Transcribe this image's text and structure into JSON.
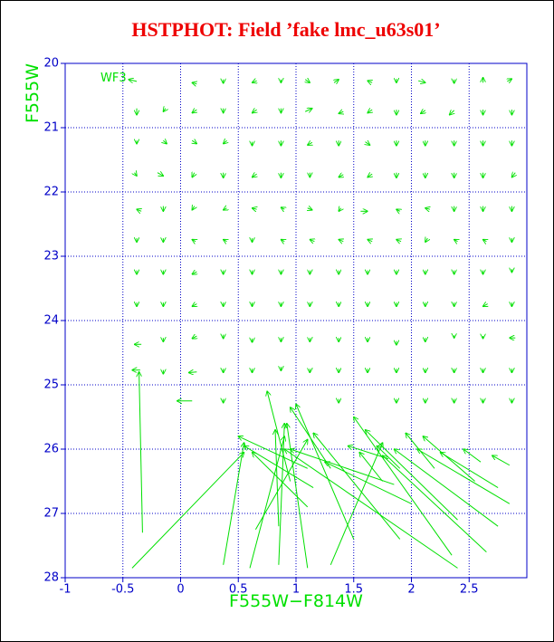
{
  "chart_data": {
    "type": "quiver",
    "title": "HSTPHOT: Field ’fake lmc_u63s01’",
    "x_label": "F555W−F814W",
    "y_label": "F555W",
    "annotation": "WF3",
    "xlim": [
      -1,
      3
    ],
    "ylim": [
      28,
      20
    ],
    "xticks": [
      -1,
      -0.5,
      0,
      0.5,
      1,
      1.5,
      2,
      2.5
    ],
    "yticks": [
      20,
      21,
      22,
      23,
      24,
      25,
      26,
      27,
      28
    ],
    "grid": true,
    "color": "#00e000",
    "arrows": [
      [
        -0.38,
        20.28,
        -0.45,
        20.25
      ],
      [
        0.14,
        20.32,
        0.1,
        20.3
      ],
      [
        0.37,
        20.25,
        0.37,
        20.31
      ],
      [
        0.66,
        20.27,
        0.62,
        20.3
      ],
      [
        0.87,
        20.25,
        0.87,
        20.3
      ],
      [
        1.08,
        20.25,
        1.12,
        20.3
      ],
      [
        1.33,
        20.3,
        1.37,
        20.25
      ],
      [
        1.66,
        20.3,
        1.62,
        20.27
      ],
      [
        1.87,
        20.24,
        1.87,
        20.3
      ],
      [
        2.06,
        20.27,
        2.12,
        20.3
      ],
      [
        2.37,
        20.25,
        2.37,
        20.31
      ],
      [
        2.62,
        20.3,
        2.62,
        20.22
      ],
      [
        2.83,
        20.28,
        2.87,
        20.24
      ],
      [
        -0.38,
        20.7,
        -0.38,
        20.8
      ],
      [
        -0.13,
        20.7,
        -0.15,
        20.75
      ],
      [
        0.14,
        20.72,
        0.1,
        20.77
      ],
      [
        0.37,
        20.7,
        0.37,
        20.77
      ],
      [
        0.66,
        20.72,
        0.62,
        20.77
      ],
      [
        0.87,
        20.7,
        0.87,
        20.77
      ],
      [
        1.08,
        20.75,
        1.14,
        20.7
      ],
      [
        1.41,
        20.75,
        1.37,
        20.78
      ],
      [
        1.66,
        20.72,
        1.62,
        20.77
      ],
      [
        1.87,
        20.72,
        1.87,
        20.8
      ],
      [
        2.12,
        20.73,
        2.08,
        20.78
      ],
      [
        2.37,
        20.73,
        2.33,
        20.8
      ],
      [
        2.62,
        20.72,
        2.62,
        20.8
      ],
      [
        2.87,
        20.72,
        2.87,
        20.8
      ],
      [
        -0.38,
        21.2,
        -0.38,
        21.25
      ],
      [
        -0.15,
        21.2,
        -0.12,
        21.25
      ],
      [
        0.1,
        21.2,
        0.14,
        21.25
      ],
      [
        0.4,
        21.2,
        0.37,
        21.25
      ],
      [
        0.62,
        21.22,
        0.62,
        21.28
      ],
      [
        0.87,
        21.2,
        0.87,
        21.28
      ],
      [
        1.14,
        21.23,
        1.1,
        21.27
      ],
      [
        1.37,
        21.2,
        1.37,
        21.28
      ],
      [
        1.6,
        21.22,
        1.64,
        21.27
      ],
      [
        1.87,
        21.2,
        1.87,
        21.28
      ],
      [
        2.12,
        21.2,
        2.12,
        21.28
      ],
      [
        2.37,
        21.2,
        2.37,
        21.28
      ],
      [
        2.62,
        21.2,
        2.62,
        21.28
      ],
      [
        2.87,
        21.2,
        2.87,
        21.28
      ],
      [
        -0.4,
        21.7,
        -0.38,
        21.75
      ],
      [
        -0.2,
        21.7,
        -0.15,
        21.75
      ],
      [
        0.12,
        21.7,
        0.1,
        21.77
      ],
      [
        0.37,
        21.7,
        0.37,
        21.78
      ],
      [
        0.66,
        21.72,
        0.62,
        21.77
      ],
      [
        0.87,
        21.7,
        0.87,
        21.78
      ],
      [
        1.12,
        21.7,
        1.12,
        21.77
      ],
      [
        1.41,
        21.73,
        1.37,
        21.77
      ],
      [
        1.66,
        21.72,
        1.62,
        21.77
      ],
      [
        1.87,
        21.7,
        1.87,
        21.78
      ],
      [
        2.12,
        21.7,
        2.12,
        21.78
      ],
      [
        2.37,
        21.7,
        2.37,
        21.78
      ],
      [
        2.62,
        21.7,
        2.62,
        21.78
      ],
      [
        2.9,
        21.7,
        2.87,
        21.77
      ],
      [
        -0.34,
        22.3,
        -0.38,
        22.27
      ],
      [
        -0.15,
        22.22,
        -0.15,
        22.3
      ],
      [
        0.12,
        22.22,
        0.1,
        22.28
      ],
      [
        0.4,
        22.25,
        0.37,
        22.28
      ],
      [
        0.66,
        22.27,
        0.62,
        22.25
      ],
      [
        0.9,
        22.27,
        0.87,
        22.24
      ],
      [
        1.1,
        22.25,
        1.14,
        22.28
      ],
      [
        1.39,
        22.25,
        1.37,
        22.3
      ],
      [
        1.56,
        22.3,
        1.62,
        22.3
      ],
      [
        1.9,
        22.3,
        1.87,
        22.27
      ],
      [
        2.16,
        22.27,
        2.12,
        22.25
      ],
      [
        2.37,
        22.22,
        2.37,
        22.3
      ],
      [
        2.62,
        22.22,
        2.62,
        22.3
      ],
      [
        2.87,
        22.22,
        2.87,
        22.3
      ],
      [
        -0.38,
        22.72,
        -0.38,
        22.78
      ],
      [
        -0.15,
        22.72,
        -0.15,
        22.78
      ],
      [
        0.13,
        22.77,
        0.1,
        22.74
      ],
      [
        0.4,
        22.77,
        0.37,
        22.74
      ],
      [
        0.62,
        22.72,
        0.62,
        22.78
      ],
      [
        0.9,
        22.77,
        0.87,
        22.74
      ],
      [
        1.16,
        22.77,
        1.12,
        22.74
      ],
      [
        1.41,
        22.77,
        1.37,
        22.74
      ],
      [
        1.66,
        22.77,
        1.62,
        22.74
      ],
      [
        1.91,
        22.77,
        1.87,
        22.74
      ],
      [
        2.14,
        22.72,
        2.12,
        22.78
      ],
      [
        2.4,
        22.77,
        2.37,
        22.74
      ],
      [
        2.65,
        22.77,
        2.62,
        22.74
      ],
      [
        2.87,
        22.72,
        2.87,
        22.78
      ],
      [
        -0.38,
        23.22,
        -0.38,
        23.28
      ],
      [
        -0.15,
        23.22,
        -0.15,
        23.28
      ],
      [
        0.14,
        23.24,
        0.1,
        23.28
      ],
      [
        0.37,
        23.22,
        0.37,
        23.28
      ],
      [
        0.62,
        23.22,
        0.62,
        23.28
      ],
      [
        0.87,
        23.22,
        0.87,
        23.28
      ],
      [
        1.12,
        23.22,
        1.12,
        23.28
      ],
      [
        1.37,
        23.22,
        1.37,
        23.28
      ],
      [
        1.62,
        23.22,
        1.62,
        23.28
      ],
      [
        1.87,
        23.22,
        1.87,
        23.28
      ],
      [
        2.12,
        23.22,
        2.12,
        23.28
      ],
      [
        2.37,
        23.22,
        2.37,
        23.28
      ],
      [
        2.62,
        23.22,
        2.62,
        23.28
      ],
      [
        2.87,
        23.2,
        2.87,
        23.25
      ],
      [
        -0.38,
        23.72,
        -0.38,
        23.78
      ],
      [
        -0.15,
        23.72,
        -0.15,
        23.78
      ],
      [
        0.14,
        23.74,
        0.1,
        23.78
      ],
      [
        0.37,
        23.72,
        0.37,
        23.78
      ],
      [
        0.62,
        23.72,
        0.62,
        23.78
      ],
      [
        0.87,
        23.72,
        0.87,
        23.78
      ],
      [
        1.12,
        23.72,
        1.12,
        23.78
      ],
      [
        1.37,
        23.72,
        1.37,
        23.78
      ],
      [
        1.62,
        23.72,
        1.62,
        23.78
      ],
      [
        1.87,
        23.72,
        1.87,
        23.78
      ],
      [
        2.12,
        23.72,
        2.12,
        23.78
      ],
      [
        2.37,
        23.72,
        2.37,
        23.78
      ],
      [
        2.66,
        23.74,
        2.62,
        23.78
      ],
      [
        2.87,
        23.72,
        2.87,
        23.78
      ],
      [
        -0.34,
        24.37,
        -0.4,
        24.37
      ],
      [
        -0.15,
        24.27,
        -0.15,
        24.33
      ],
      [
        0.14,
        24.24,
        0.1,
        24.28
      ],
      [
        0.37,
        24.22,
        0.37,
        24.28
      ],
      [
        0.62,
        24.28,
        0.62,
        24.34
      ],
      [
        0.87,
        24.27,
        0.87,
        24.33
      ],
      [
        1.12,
        24.27,
        1.12,
        24.33
      ],
      [
        1.37,
        24.27,
        1.37,
        24.33
      ],
      [
        1.62,
        24.27,
        1.62,
        24.33
      ],
      [
        1.87,
        24.32,
        1.87,
        24.38
      ],
      [
        2.12,
        24.27,
        2.12,
        24.33
      ],
      [
        2.37,
        24.23,
        2.37,
        24.27
      ],
      [
        2.62,
        24.24,
        2.62,
        24.28
      ],
      [
        2.9,
        24.27,
        2.85,
        24.27
      ],
      [
        -0.35,
        24.77,
        -0.42,
        24.77
      ],
      [
        -0.15,
        24.77,
        -0.15,
        24.83
      ],
      [
        0.14,
        24.8,
        0.07,
        24.81
      ],
      [
        0.37,
        24.75,
        0.37,
        24.81
      ],
      [
        0.62,
        24.75,
        0.62,
        24.81
      ],
      [
        0.87,
        24.72,
        0.87,
        24.78
      ],
      [
        1.12,
        24.75,
        1.12,
        24.81
      ],
      [
        1.37,
        24.75,
        1.37,
        24.81
      ],
      [
        1.62,
        24.75,
        1.62,
        24.81
      ],
      [
        1.87,
        24.75,
        1.87,
        24.81
      ],
      [
        2.12,
        24.75,
        2.12,
        24.81
      ],
      [
        2.37,
        24.75,
        2.37,
        24.81
      ],
      [
        2.62,
        24.75,
        2.62,
        24.81
      ],
      [
        2.87,
        24.75,
        2.87,
        24.81
      ],
      [
        0.37,
        25.22,
        0.37,
        25.28
      ],
      [
        1.37,
        25.22,
        1.37,
        25.28
      ],
      [
        1.87,
        25.22,
        1.87,
        25.28
      ],
      [
        2.12,
        25.22,
        2.12,
        25.28
      ],
      [
        2.37,
        25.22,
        2.37,
        25.28
      ],
      [
        2.62,
        25.22,
        2.62,
        25.28
      ],
      [
        2.87,
        25.22,
        2.87,
        25.28
      ],
      [
        -0.33,
        27.3,
        -0.36,
        24.8
      ],
      [
        0.1,
        25.25,
        -0.03,
        25.25
      ],
      [
        0.37,
        27.8,
        0.55,
        25.9
      ],
      [
        -0.42,
        27.85,
        0.55,
        26.05
      ],
      [
        0.85,
        27.8,
        0.9,
        25.6
      ],
      [
        0.6,
        27.85,
        0.9,
        25.8
      ],
      [
        1.1,
        27.85,
        0.92,
        25.6
      ],
      [
        0.85,
        27.2,
        0.82,
        25.7
      ],
      [
        1.3,
        27.8,
        1.75,
        25.9
      ],
      [
        1.5,
        27.4,
        1.0,
        25.3
      ],
      [
        1.15,
        26.6,
        0.55,
        25.95
      ],
      [
        1.1,
        26.9,
        0.62,
        26.05
      ],
      [
        2.4,
        27.85,
        0.9,
        26.0
      ],
      [
        2.35,
        27.65,
        1.5,
        25.5
      ],
      [
        2.65,
        27.6,
        1.75,
        26.1
      ],
      [
        2.75,
        27.2,
        1.85,
        26.0
      ],
      [
        2.4,
        27.1,
        1.6,
        25.7
      ],
      [
        2.85,
        26.85,
        2.05,
        26.0
      ],
      [
        2.75,
        26.6,
        2.25,
        26.05
      ],
      [
        2.85,
        26.25,
        2.7,
        26.1
      ],
      [
        2.6,
        26.2,
        2.45,
        26.0
      ],
      [
        1.9,
        27.4,
        1.15,
        25.75
      ],
      [
        2.0,
        26.85,
        1.25,
        26.2
      ],
      [
        1.85,
        26.55,
        0.95,
        26.0
      ],
      [
        0.95,
        26.5,
        0.75,
        25.1
      ],
      [
        1.1,
        26.3,
        0.5,
        25.8
      ],
      [
        0.65,
        27.25,
        1.1,
        25.85
      ],
      [
        1.3,
        26.3,
        0.95,
        25.35
      ],
      [
        1.9,
        26.3,
        1.7,
        25.95
      ],
      [
        2.2,
        26.3,
        1.95,
        25.75
      ],
      [
        2.55,
        26.5,
        2.1,
        25.8
      ],
      [
        1.8,
        26.15,
        1.45,
        25.95
      ],
      [
        1.75,
        26.5,
        1.55,
        26.05
      ]
    ]
  }
}
